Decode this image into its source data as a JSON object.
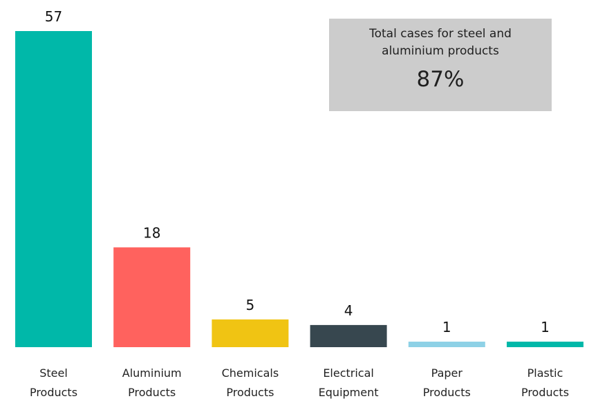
{
  "chart_data": {
    "type": "bar",
    "categories": [
      [
        "Steel",
        "Products"
      ],
      [
        "Aluminium",
        "Products"
      ],
      [
        "Chemicals",
        "Products"
      ],
      [
        "Electrical",
        "Equipment"
      ],
      [
        "Paper",
        "Products"
      ],
      [
        "Plastic",
        "Products"
      ]
    ],
    "values": [
      57,
      18,
      5,
      4,
      1,
      1
    ],
    "colors": [
      "#00B8A9",
      "#FF625E",
      "#F0C413",
      "#37474F",
      "#8ED1E6",
      "#00B8A9"
    ],
    "ylim": [
      0,
      57
    ],
    "grid": false,
    "legend": "none"
  },
  "callout": {
    "text": "Total cases for steel and aluminium products",
    "value": "87%"
  }
}
